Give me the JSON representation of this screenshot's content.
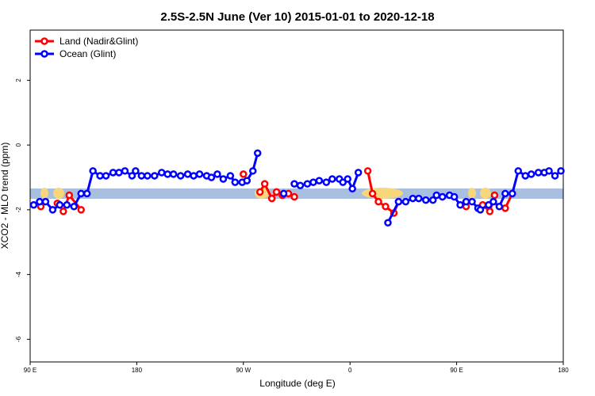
{
  "chart_data": {
    "type": "line",
    "title": "2.5S-2.5N June (Ver 10)   2015-01-01 to 2020-12-18",
    "x_label": "Longitude (deg E)",
    "y_label": "XCO2 - MLO trend (ppm)",
    "xlim": [
      90,
      540
    ],
    "ylim": [
      -6.7,
      3.55
    ],
    "xticks": [
      {
        "value": 90,
        "label": "90 E"
      },
      180,
      {
        "value": 270,
        "label": "90 W"
      },
      {
        "value": 360,
        "label": "0"
      },
      {
        "value": 450,
        "label": "90 E"
      },
      {
        "value": 540,
        "label": "180"
      }
    ],
    "yticks": [
      2,
      0,
      -2,
      -4,
      -6
    ],
    "legend": "top-left",
    "series": [
      {
        "name": "Land (Nadir&Glint)",
        "color": "#ff0000",
        "x": [
          99,
          null,
          113,
          118,
          123,
          133,
          null,
          270,
          null,
          284,
          288,
          294,
          298,
          303,
          308,
          313,
          null,
          375,
          379,
          384,
          390,
          397,
          401,
          null,
          458,
          null,
          472,
          478,
          482,
          null,
          491,
          497
        ],
        "values": [
          -1.9,
          null,
          -1.8,
          -2.05,
          -1.55,
          -2.0,
          null,
          -0.9,
          null,
          -1.45,
          -1.2,
          -1.65,
          -1.45,
          -1.55,
          -1.5,
          -1.6,
          null,
          -0.8,
          -1.5,
          -1.75,
          -1.9,
          -2.1,
          -1.75,
          null,
          -1.9,
          null,
          -1.85,
          -2.05,
          -1.55,
          null,
          -1.95,
          -1.5
        ]
      },
      {
        "name": "Ocean (Glint)",
        "color": "#0000ff",
        "x": [
          93,
          98,
          103,
          109,
          115,
          121,
          127,
          133,
          138,
          143,
          149,
          154,
          160,
          165,
          170,
          176,
          179,
          184,
          189,
          195,
          201,
          206,
          211,
          217,
          223,
          228,
          233,
          239,
          243,
          248,
          253,
          259,
          263,
          269,
          273,
          278,
          282,
          null,
          304,
          null,
          313,
          318,
          324,
          329,
          334,
          340,
          345,
          351,
          354,
          358,
          362,
          367,
          null,
          392,
          401,
          407,
          413,
          418,
          424,
          430,
          433,
          438,
          444,
          448,
          453,
          458,
          463,
          468,
          470,
          477,
          481,
          486,
          491,
          497,
          502,
          508,
          513,
          519,
          524,
          528,
          533,
          538
        ],
        "values": [
          -1.85,
          -1.75,
          -1.75,
          -2.0,
          -1.85,
          -1.85,
          -1.9,
          -1.5,
          -1.5,
          -0.8,
          -0.95,
          -0.95,
          -0.85,
          -0.85,
          -0.8,
          -0.95,
          -0.8,
          -0.95,
          -0.95,
          -0.95,
          -0.85,
          -0.9,
          -0.9,
          -0.95,
          -0.9,
          -0.95,
          -0.9,
          -0.95,
          -1.0,
          -0.9,
          -1.05,
          -0.95,
          -1.15,
          -1.15,
          -1.1,
          -0.8,
          -0.25,
          null,
          -1.5,
          null,
          -1.2,
          -1.25,
          -1.2,
          -1.15,
          -1.1,
          -1.15,
          -1.05,
          -1.05,
          -1.15,
          -1.05,
          -1.35,
          -0.85,
          null,
          -2.4,
          -1.75,
          -1.75,
          -1.65,
          -1.65,
          -1.7,
          -1.7,
          -1.55,
          -1.6,
          -1.55,
          -1.6,
          -1.85,
          -1.75,
          -1.75,
          -1.95,
          -2.0,
          -1.85,
          -1.75,
          -1.9,
          -1.5,
          -1.5,
          -0.8,
          -0.95,
          -0.9,
          -0.85,
          -0.85,
          -0.8,
          -0.95,
          -0.8
        ]
      }
    ]
  }
}
